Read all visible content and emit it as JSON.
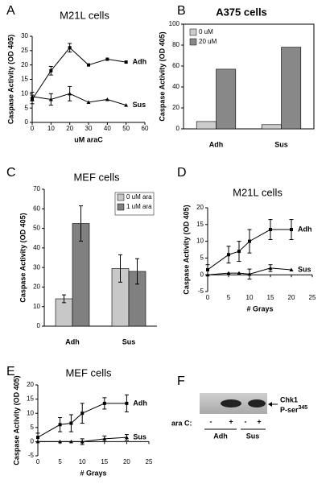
{
  "chart_data": [
    {
      "type": "line",
      "panel": "A",
      "title": "M21L cells",
      "xlabel": "uM araC",
      "ylabel": "Caspase Activity (OD 405)",
      "xlim": [
        0,
        60
      ],
      "xticks": [
        0,
        10,
        20,
        30,
        40,
        50,
        60
      ],
      "ylim": [
        0,
        30
      ],
      "yticks": [
        0,
        5,
        10,
        15,
        20,
        25,
        30
      ],
      "x": [
        0,
        10,
        20,
        30,
        40,
        50
      ],
      "series": [
        {
          "name": "Adh",
          "color": "#000000",
          "values": [
            8,
            18,
            26,
            20,
            22,
            21
          ],
          "errors": [
            1.5,
            1.5,
            1.5,
            null,
            null,
            null
          ]
        },
        {
          "name": "Sus",
          "color": "#000000",
          "values": [
            9,
            8,
            10,
            7,
            8,
            6
          ],
          "errors": [
            1.5,
            2,
            2.5,
            null,
            null,
            null
          ]
        }
      ]
    },
    {
      "type": "bar",
      "panel": "B",
      "title": "A375 cells",
      "ylabel": "Caspase Activity (OD 405)",
      "ylim": [
        0,
        100
      ],
      "yticks": [
        0,
        20,
        40,
        60,
        80,
        100
      ],
      "categories": [
        "Adh",
        "Sus"
      ],
      "legend": "upper left",
      "series": [
        {
          "name": "0 uM",
          "color": "#cccccc",
          "values": [
            7,
            4
          ]
        },
        {
          "name": "20 uM",
          "color": "#888888",
          "values": [
            57,
            78
          ]
        }
      ]
    },
    {
      "type": "bar",
      "panel": "C",
      "title": "MEF cells",
      "ylabel": "Caspase Activity (OD 405)",
      "ylim": [
        0,
        70
      ],
      "yticks": [
        0,
        10,
        20,
        30,
        40,
        50,
        60,
        70
      ],
      "categories": [
        "Adh",
        "Sus"
      ],
      "legend": "upper right",
      "series": [
        {
          "name": "0 uM ara",
          "color": "#c8c8c8",
          "values": [
            14,
            29.5
          ],
          "errors": [
            2,
            7
          ]
        },
        {
          "name": "1 uM ara",
          "color": "#808080",
          "values": [
            52.5,
            28
          ],
          "errors": [
            9,
            6.5
          ]
        }
      ]
    },
    {
      "type": "line",
      "panel": "D",
      "title": "M21L cells",
      "xlabel": "# Grays",
      "ylabel": "Caspase Activity (OD 405)",
      "xlim": [
        0,
        25
      ],
      "xticks": [
        0,
        5,
        10,
        15,
        20,
        25
      ],
      "ylim": [
        -5,
        20
      ],
      "yticks": [
        -5,
        0,
        5,
        10,
        15,
        20
      ],
      "x": [
        0,
        5,
        7.5,
        10,
        15,
        20
      ],
      "series": [
        {
          "name": "Adh",
          "color": "#000000",
          "values": [
            1.5,
            6,
            7,
            10,
            13.5,
            13.5
          ],
          "errors": [
            1.5,
            2.5,
            3,
            3.5,
            3,
            3
          ]
        },
        {
          "name": "Sus",
          "color": "#000000",
          "values": [
            0,
            0.5,
            0.5,
            0.2,
            2,
            1.5
          ],
          "errors": [
            null,
            null,
            null,
            1.5,
            1,
            null
          ]
        }
      ]
    },
    {
      "type": "line",
      "panel": "E",
      "title": "MEF cells",
      "xlabel": "# Grays",
      "ylabel": "Caspase Activity (OD 405)",
      "xlim": [
        0,
        25
      ],
      "xticks": [
        0,
        5,
        10,
        15,
        20,
        25
      ],
      "ylim": [
        -5,
        20
      ],
      "yticks": [
        -5,
        0,
        5,
        10,
        15,
        20
      ],
      "x": [
        0,
        5,
        7.5,
        10,
        15,
        20
      ],
      "series": [
        {
          "name": "Adh",
          "color": "#000000",
          "values": [
            1.5,
            6,
            6.5,
            10,
            13.5,
            13.5
          ],
          "errors": [
            1.5,
            2.5,
            3,
            3.5,
            2,
            3
          ]
        },
        {
          "name": "Sus",
          "color": "#000000",
          "values": [
            0,
            0,
            0,
            0,
            1,
            1.5
          ],
          "errors": [
            null,
            null,
            null,
            1,
            1,
            1
          ]
        }
      ]
    }
  ],
  "blot": {
    "panel": "F",
    "protein": "Chk1",
    "site": "P-ser",
    "site_superscript": "345",
    "row_label": "ara C:",
    "lanes": [
      "-",
      "+",
      "-",
      "+"
    ],
    "groups": [
      "Adh",
      "Sus"
    ]
  }
}
